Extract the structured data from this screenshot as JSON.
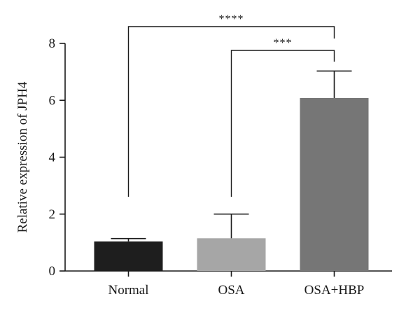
{
  "chart_data": {
    "type": "bar",
    "categories": [
      "Normal",
      "OSA",
      "OSA+HBP"
    ],
    "values": [
      1.04,
      1.15,
      6.08
    ],
    "errors": [
      0.1,
      0.85,
      0.95
    ],
    "colors": [
      "#1e1e1e",
      "#a6a6a6",
      "#767676"
    ],
    "title": "",
    "xlabel": "",
    "ylabel": "Relative expression of JPH4",
    "ylim": [
      0,
      8
    ],
    "yticks": [
      0,
      2,
      4,
      6,
      8
    ],
    "ytick_labels": [
      "0",
      "2",
      "4",
      "6",
      "8"
    ],
    "grid": false,
    "legend": "none",
    "significance": [
      {
        "from": "Normal",
        "to": "OSA+HBP",
        "label": "****"
      },
      {
        "from": "OSA",
        "to": "OSA+HBP",
        "label": "***"
      }
    ]
  }
}
